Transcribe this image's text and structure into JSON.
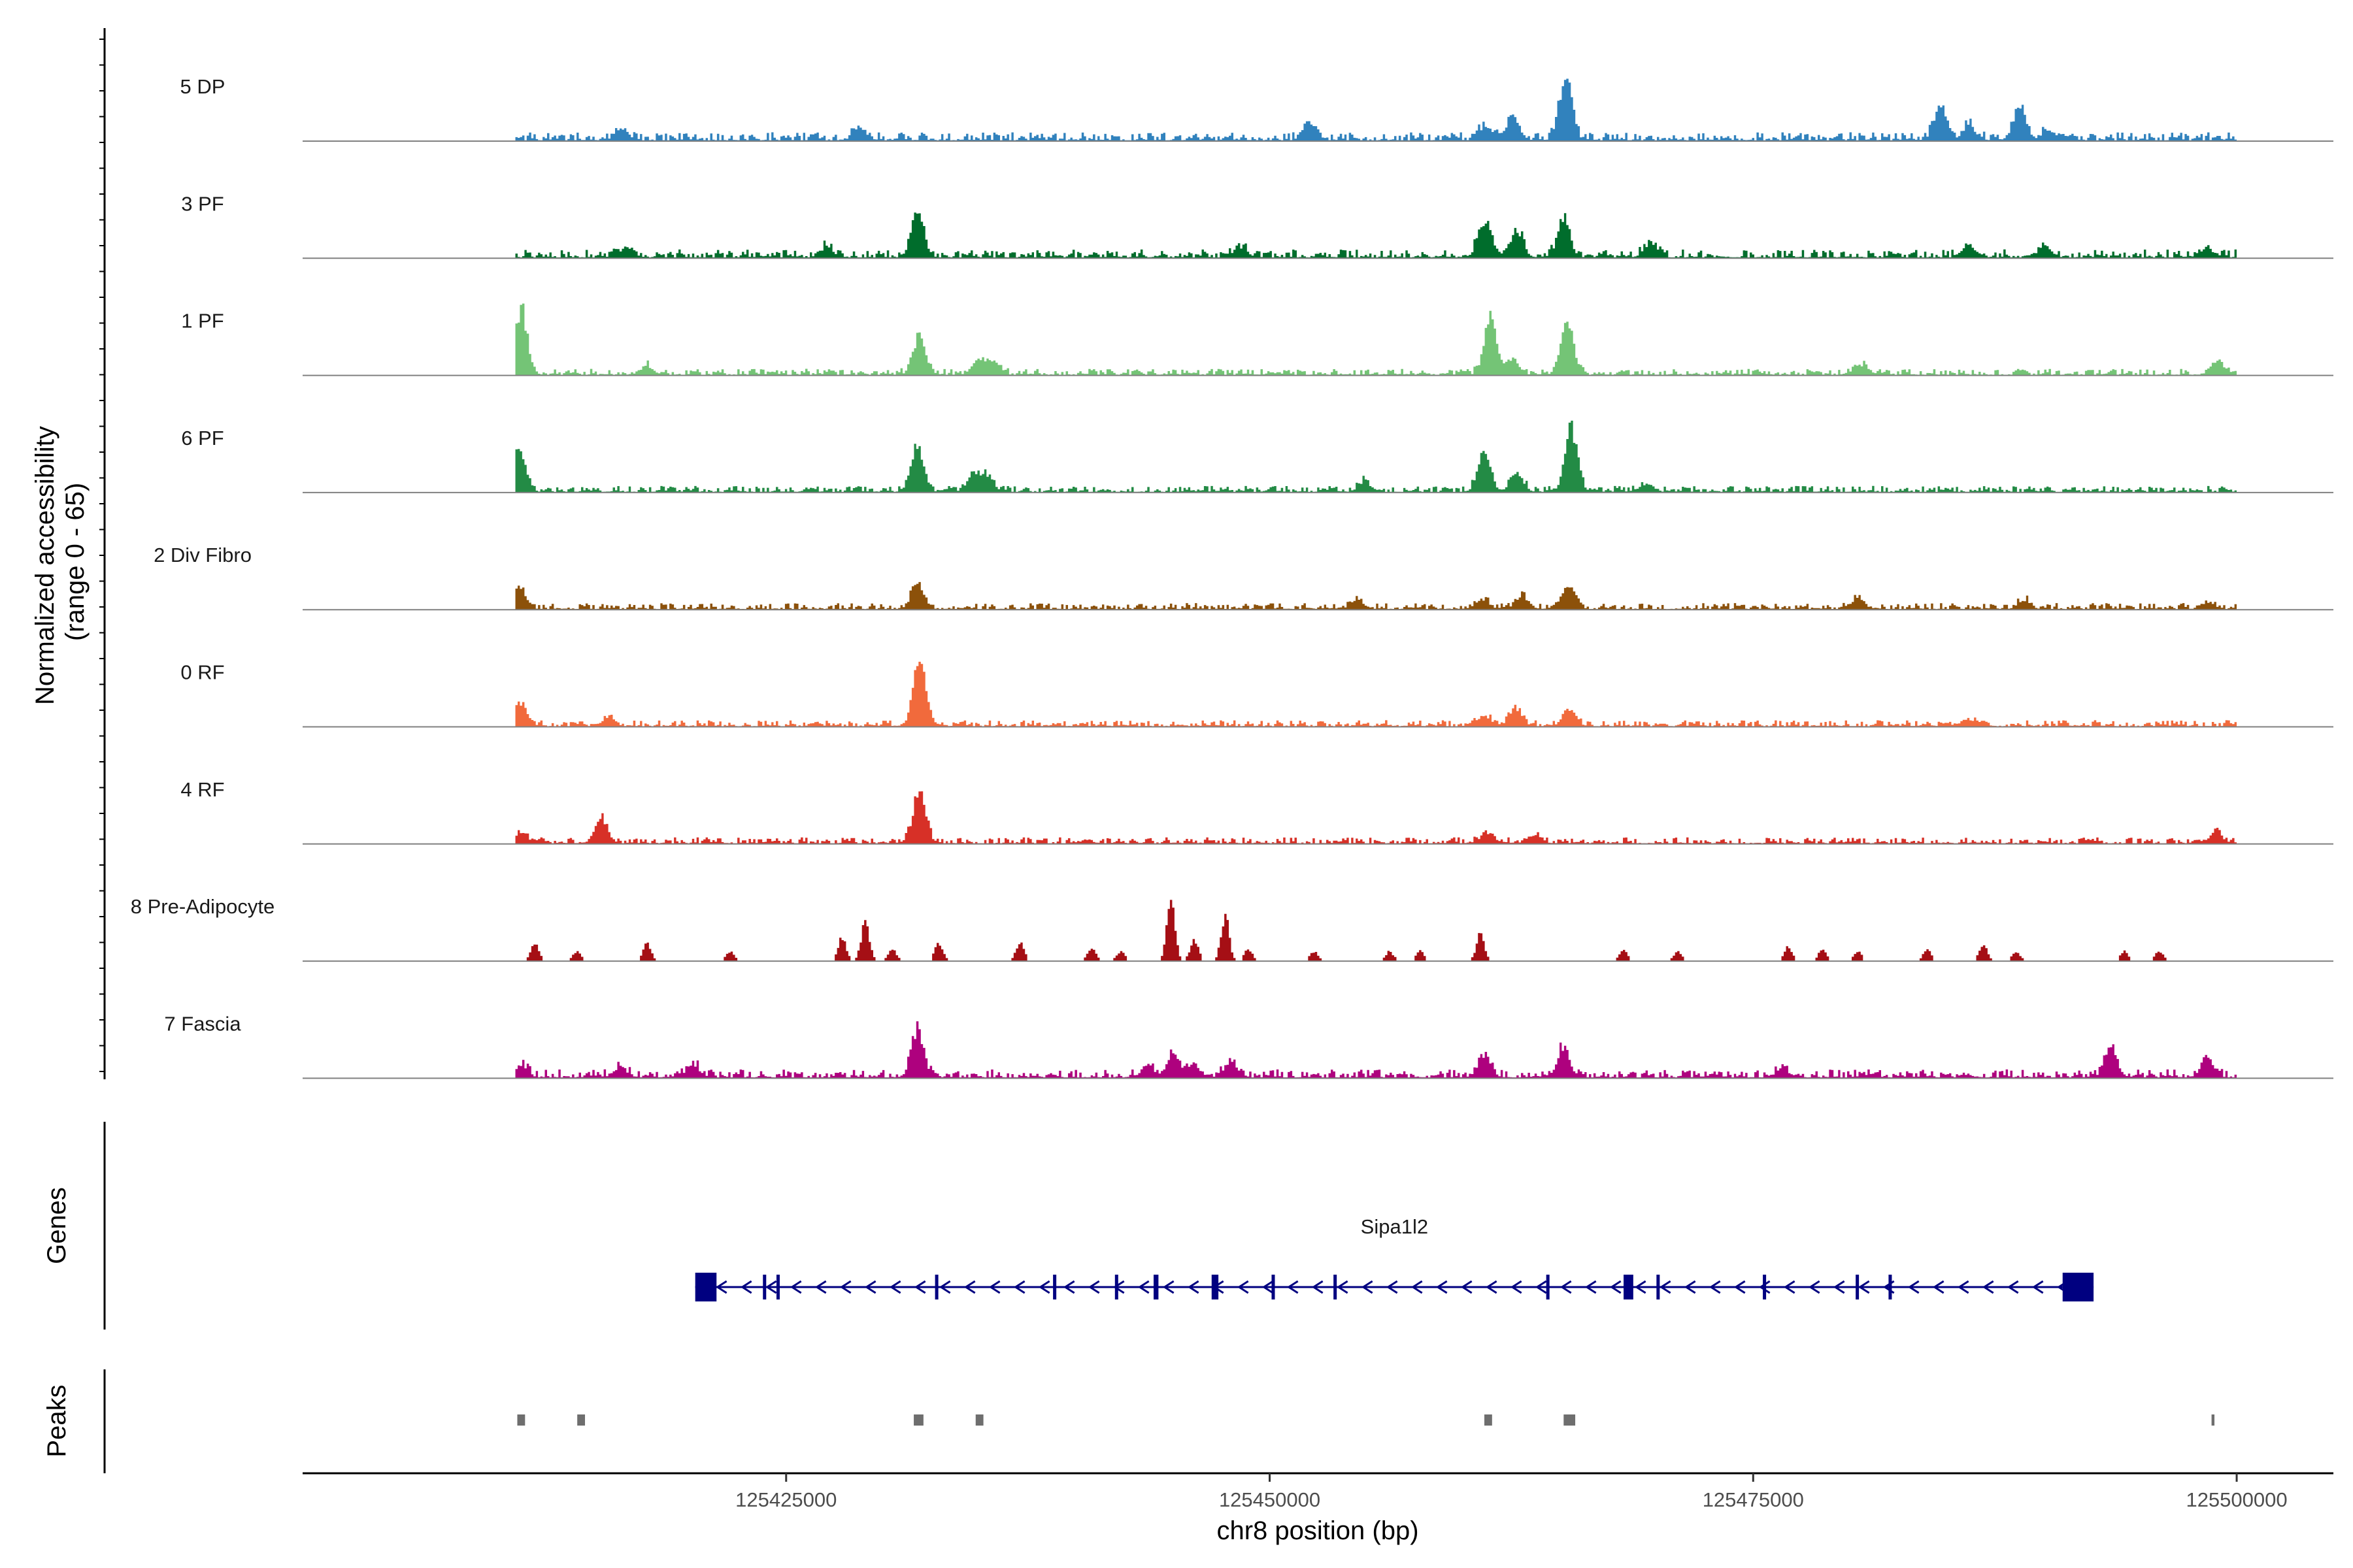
{
  "chart_data": {
    "type": "area",
    "title": "",
    "chromosome": "chr8",
    "region": [
      125411000,
      125500000
    ],
    "xlim": [
      125400000,
      125505000
    ],
    "xlabel": "chr8 position (bp)",
    "ylabel": "Normalized accessibility\n(range 0 - 65)",
    "ylim": [
      0,
      65
    ],
    "x_ticks": [
      125425000,
      125450000,
      125475000,
      125500000
    ],
    "x_tick_labels": [
      "125425000",
      "125450000",
      "125475000",
      "125500000"
    ],
    "tracks": [
      {
        "name": "5 DP",
        "color": "#3182bd",
        "baseline": 4,
        "sparse": false,
        "peaks": [
          [
            125416500,
            12
          ],
          [
            125428800,
            12
          ],
          [
            125452100,
            18
          ],
          [
            125461200,
            15
          ],
          [
            125462600,
            22
          ],
          [
            125465300,
            65
          ],
          [
            125484700,
            38
          ],
          [
            125486200,
            14
          ],
          [
            125488800,
            36
          ],
          [
            125490300,
            10
          ]
        ]
      },
      {
        "name": "3 PF",
        "color": "#006d2c",
        "baseline": 4,
        "sparse": false,
        "peaks": [
          [
            125416800,
            10
          ],
          [
            125427100,
            10
          ],
          [
            125431800,
            45
          ],
          [
            125448500,
            10
          ],
          [
            125461100,
            35
          ],
          [
            125462800,
            24
          ],
          [
            125465200,
            38
          ],
          [
            125469700,
            12
          ],
          [
            125486200,
            12
          ],
          [
            125490100,
            10
          ],
          [
            125498500,
            9
          ]
        ]
      },
      {
        "name": "1 PF",
        "color": "#74c476",
        "baseline": 3,
        "sparse": false,
        "peaks": [
          [
            125411300,
            65
          ],
          [
            125417800,
            8
          ],
          [
            125431900,
            38
          ],
          [
            125434900,
            14
          ],
          [
            125435700,
            12
          ],
          [
            125461400,
            55
          ],
          [
            125462500,
            15
          ],
          [
            125465400,
            54
          ],
          [
            125480600,
            10
          ],
          [
            125499000,
            14
          ]
        ]
      },
      {
        "name": "6 PF",
        "color": "#238b45",
        "baseline": 3,
        "sparse": false,
        "peaks": [
          [
            125411200,
            40
          ],
          [
            125431800,
            46
          ],
          [
            125434700,
            18
          ],
          [
            125435400,
            14
          ],
          [
            125454900,
            10
          ],
          [
            125461100,
            40
          ],
          [
            125462800,
            18
          ],
          [
            125465600,
            65
          ],
          [
            125469500,
            8
          ]
        ]
      },
      {
        "name": "2 Div Fibro",
        "color": "#8c510a",
        "baseline": 3,
        "sparse": false,
        "peaks": [
          [
            125411200,
            20
          ],
          [
            125431800,
            24
          ],
          [
            125454500,
            10
          ],
          [
            125461000,
            10
          ],
          [
            125463100,
            12
          ],
          [
            125465500,
            22
          ],
          [
            125480400,
            10
          ],
          [
            125489000,
            8
          ],
          [
            125498500,
            6
          ]
        ]
      },
      {
        "name": "0 RF",
        "color": "#f16a3c",
        "baseline": 3,
        "sparse": false,
        "peaks": [
          [
            125411300,
            22
          ],
          [
            125415800,
            8
          ],
          [
            125431900,
            65
          ],
          [
            125461100,
            10
          ],
          [
            125462700,
            18
          ],
          [
            125465500,
            18
          ],
          [
            125486100,
            6
          ]
        ]
      },
      {
        "name": "4 RF",
        "color": "#d73027",
        "baseline": 3,
        "sparse": false,
        "peaks": [
          [
            125411300,
            10
          ],
          [
            125415400,
            25
          ],
          [
            125431900,
            55
          ],
          [
            125461200,
            10
          ],
          [
            125463700,
            8
          ],
          [
            125498900,
            10
          ]
        ]
      },
      {
        "name": "8 Pre-Adipocyte",
        "color": "#a50f15",
        "baseline": 0,
        "sparse": true,
        "peaks": [
          [
            125412000,
            18
          ],
          [
            125414200,
            10
          ],
          [
            125417800,
            18
          ],
          [
            125422100,
            10
          ],
          [
            125427900,
            24
          ],
          [
            125429100,
            40
          ],
          [
            125430500,
            12
          ],
          [
            125432900,
            18
          ],
          [
            125437100,
            18
          ],
          [
            125440800,
            14
          ],
          [
            125442300,
            10
          ],
          [
            125444900,
            65
          ],
          [
            125446100,
            22
          ],
          [
            125447700,
            45
          ],
          [
            125448900,
            12
          ],
          [
            125452300,
            10
          ],
          [
            125456200,
            10
          ],
          [
            125457800,
            10
          ],
          [
            125460900,
            28
          ],
          [
            125468300,
            12
          ],
          [
            125471100,
            10
          ],
          [
            125476800,
            14
          ],
          [
            125478600,
            12
          ],
          [
            125480400,
            10
          ],
          [
            125484000,
            12
          ],
          [
            125486900,
            18
          ],
          [
            125488600,
            10
          ],
          [
            125494200,
            10
          ],
          [
            125496000,
            10
          ]
        ]
      },
      {
        "name": "7 Fascia",
        "color": "#ae017e",
        "baseline": 4,
        "sparse": false,
        "peaks": [
          [
            125411300,
            12
          ],
          [
            125416400,
            10
          ],
          [
            125420200,
            12
          ],
          [
            125431800,
            48
          ],
          [
            125443700,
            10
          ],
          [
            125445000,
            24
          ],
          [
            125446100,
            12
          ],
          [
            125448000,
            14
          ],
          [
            125461100,
            22
          ],
          [
            125465200,
            28
          ],
          [
            125476500,
            8
          ],
          [
            125493500,
            30
          ],
          [
            125498500,
            18
          ]
        ]
      }
    ],
    "genes": [
      {
        "name": "Sipa1l2",
        "strand": "-",
        "exons": [
          [
            125420300,
            125421400
          ],
          [
            125423800,
            125423950
          ],
          [
            125424500,
            125424650
          ],
          [
            125432700,
            125432850
          ],
          [
            125438800,
            125438950
          ],
          [
            125442000,
            125442150
          ],
          [
            125444000,
            125444250
          ],
          [
            125447000,
            125447350
          ],
          [
            125450100,
            125450250
          ],
          [
            125453300,
            125453450
          ],
          [
            125464300,
            125464450
          ],
          [
            125468300,
            125468800
          ],
          [
            125470000,
            125470100
          ],
          [
            125475500,
            125475650
          ],
          [
            125480300,
            125480450
          ],
          [
            125482000,
            125482150
          ],
          [
            125491000,
            125492600
          ]
        ]
      }
    ],
    "peaks_track": [
      [
        125411100,
        125411500
      ],
      [
        125414200,
        125414600
      ],
      [
        125431600,
        125432100
      ],
      [
        125434800,
        125435200
      ],
      [
        125461100,
        125461500
      ],
      [
        125465200,
        125465800
      ],
      [
        125498700,
        125498850
      ]
    ]
  },
  "labels": {
    "y_title_line1": "Normalized accessibility",
    "y_title_line2": "(range 0 - 65)",
    "genes_title": "Genes",
    "peaks_title": "Peaks"
  },
  "colors": {
    "axis": "#000000",
    "baseline": "#808080",
    "gene": "#000080",
    "peak": "#6e6e6e"
  }
}
